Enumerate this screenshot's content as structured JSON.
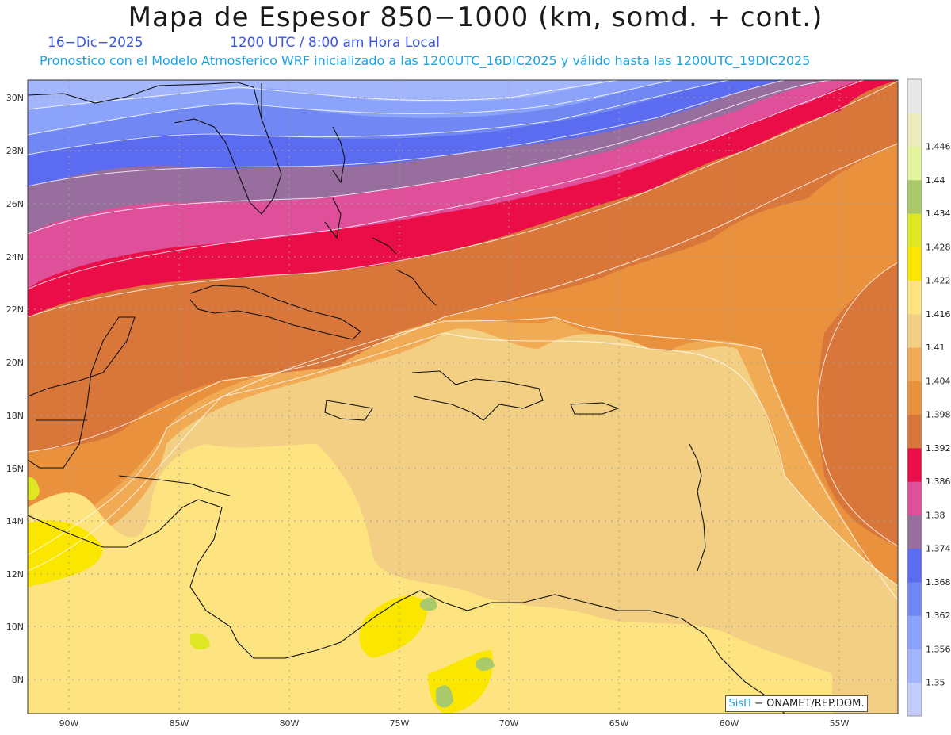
{
  "header": {
    "title": "Mapa de Espesor 850−1000 (km, somd. + cont.)",
    "date": "16−Dic−2025",
    "time": "1200 UTC / 8:00 am Hora Local",
    "forecast_info": "Pronostico con el Modelo Atmosferico WRF inicializado a las 1200UTC_16DIC2025 y válido hasta las  1200UTC_19DIC2025"
  },
  "map": {
    "lat_labels": [
      "30N",
      "28N",
      "26N",
      "24N",
      "22N",
      "20N",
      "18N",
      "16N",
      "14N",
      "12N",
      "10N",
      "8N"
    ],
    "lon_labels": [
      "90W",
      "85W",
      "80W",
      "75W",
      "70W",
      "65W",
      "60W",
      "55W"
    ]
  },
  "colorbar": {
    "levels": [
      "1.35",
      "1.356",
      "1.362",
      "1.368",
      "1.374",
      "1.38",
      "1.386",
      "1.392",
      "1.398",
      "1.404",
      "1.41",
      "1.416",
      "1.422",
      "1.428",
      "1.434",
      "1.44",
      "1.446"
    ],
    "colors": [
      "#c2cdfb",
      "#a3b6fb",
      "#8ba3fa",
      "#7087f4",
      "#5c6cf0",
      "#986e9e",
      "#e04f9a",
      "#ea0d47",
      "#d9773a",
      "#e9913d",
      "#f1ab55",
      "#f3cf83",
      "#fde480",
      "#fbe600",
      "#dfe722",
      "#a9c96a",
      "#e2f59c",
      "#ececbe",
      "#e8e8e8"
    ]
  },
  "credit": {
    "logo": "SisΠ",
    "text": " − ONAMET/REP.DOM."
  }
}
